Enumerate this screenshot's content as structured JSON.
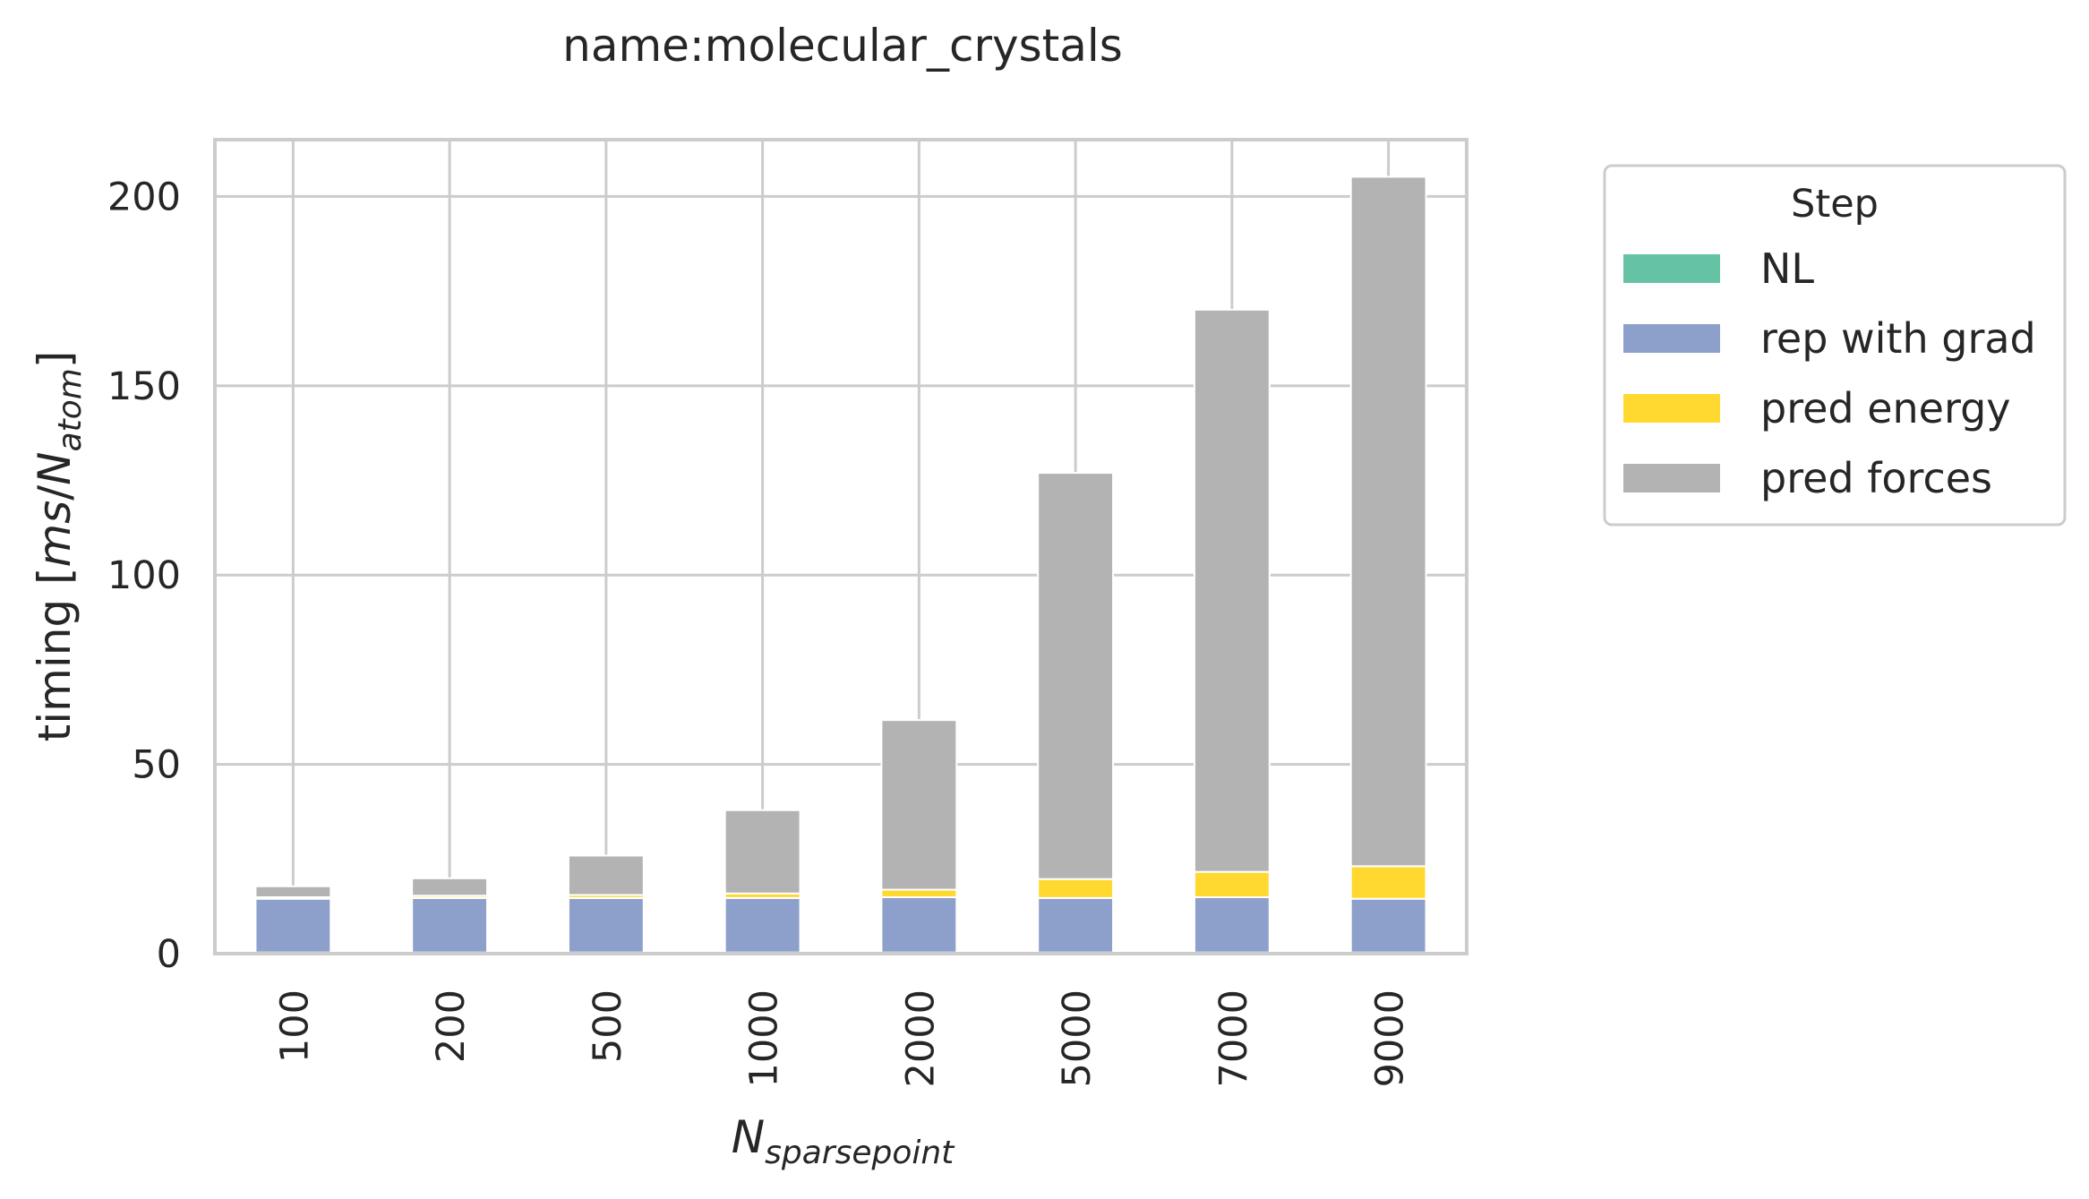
{
  "chart_data": {
    "type": "bar",
    "stacked": true,
    "title": "name:molecular_crystals",
    "xlabel": {
      "main": "N",
      "sub": "sparsepoint"
    },
    "ylabel": {
      "prefix": "timing [",
      "ms": "ms",
      "slash": "/",
      "n": "N",
      "sub": "atom",
      "suffix": "]"
    },
    "categories": [
      "100",
      "200",
      "500",
      "1000",
      "2000",
      "5000",
      "7000",
      "9000"
    ],
    "ylim": [
      0,
      215
    ],
    "yticks": [
      "0",
      "50",
      "100",
      "150",
      "200"
    ],
    "grid": true,
    "legend": {
      "title": "Step",
      "placement": "outside right"
    },
    "series": [
      {
        "name": "NL",
        "color": "#66c2a5",
        "values": [
          0.3,
          0.3,
          0.3,
          0.3,
          0.3,
          0.3,
          0.3,
          0.3
        ]
      },
      {
        "name": "rep with grad",
        "color": "#8da0cb",
        "values": [
          14.2,
          14.4,
          14.4,
          14.4,
          14.6,
          14.4,
          14.6,
          14.2
        ]
      },
      {
        "name": "pred energy",
        "color": "#ffd92f",
        "values": [
          0.4,
          0.6,
          0.8,
          1.2,
          2.0,
          5.0,
          6.7,
          8.6
        ]
      },
      {
        "name": "pred forces",
        "color": "#b3b3b3",
        "values": [
          2.9,
          4.6,
          10.4,
          22.0,
          44.8,
          107.3,
          148.5,
          182.1
        ]
      }
    ]
  }
}
